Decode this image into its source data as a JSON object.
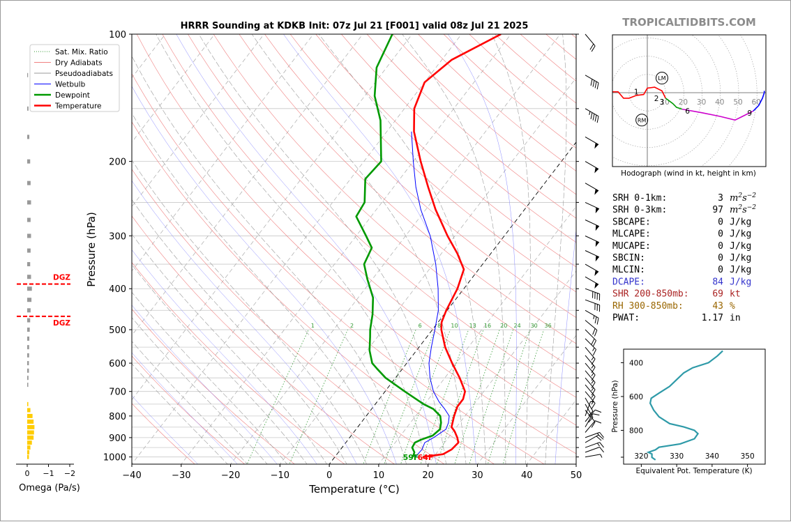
{
  "header": {
    "title": "HRRR Sounding at KDKB Init: 07z Jul 21 [F001] valid 08z Jul 21 2025",
    "brand": "TROPICALTIDBITS.COM"
  },
  "colors": {
    "temperature": "#ff0000",
    "dewpoint": "#009900",
    "wetbulb": "#0000ff",
    "dry_adiabat": "#f08080",
    "pseudoadiabat": "#999999",
    "mixing_ratio": "#339933",
    "isobar": "#c8c8c8",
    "omega_neg": "#999999",
    "omega_pos": "#ffcc00",
    "dgz": "#ff0000",
    "theta_e": "#2e9aa8",
    "dcape": "#3333cc",
    "shear": "#aa2222",
    "rh": "#996600"
  },
  "legend": {
    "items": [
      {
        "label": "Sat. Mix. Ratio",
        "style": "dotted",
        "color": "#339933"
      },
      {
        "label": "Dry Adiabats",
        "style": "solid-thin",
        "color": "#f08080"
      },
      {
        "label": "Pseudoadiabats",
        "style": "solid-thin",
        "color": "#999999"
      },
      {
        "label": "Wetbulb",
        "style": "solid-thin",
        "color": "#0000ff"
      },
      {
        "label": "Dewpoint",
        "style": "solid-thick",
        "color": "#009900"
      },
      {
        "label": "Temperature",
        "style": "solid-thick",
        "color": "#ff0000"
      }
    ]
  },
  "chart_data": [
    {
      "type": "line",
      "name": "skewt",
      "xlabel": "Temperature (°C)",
      "ylabel": "Pressure (hPa)",
      "xlim": [
        -40,
        50
      ],
      "ylim": [
        1040,
        100
      ],
      "y_log": true,
      "x_ticks": [
        "−40",
        "−30",
        "−20",
        "−10",
        "0",
        "10",
        "20",
        "30",
        "40",
        "50"
      ],
      "x_tick_values": [
        -40,
        -30,
        -20,
        -10,
        0,
        10,
        20,
        30,
        40,
        50
      ],
      "y_ticks": [
        100,
        200,
        300,
        400,
        500,
        600,
        700,
        800,
        900,
        1000
      ],
      "mix_ratio_labels": [
        "1",
        "2",
        "6",
        "8",
        "10",
        "13",
        "16",
        "20",
        "24",
        "30",
        "36"
      ],
      "mix_ratio_values": [
        1,
        2,
        6,
        8,
        10,
        13,
        16,
        20,
        24,
        30,
        36
      ],
      "surface_dewpoint_label": "59F",
      "surface_temp_label": "64F",
      "series": [
        {
          "name": "Temperature",
          "points": [
            [
              1000,
              17.8
            ],
            [
              985,
              21.5
            ],
            [
              960,
              22.5
            ],
            [
              925,
              22.8
            ],
            [
              900,
              21.8
            ],
            [
              870,
              20.3
            ],
            [
              850,
              19.0
            ],
            [
              800,
              17.8
            ],
            [
              760,
              17.0
            ],
            [
              730,
              17.0
            ],
            [
              700,
              16.2
            ],
            [
              650,
              13.0
            ],
            [
              600,
              9.2
            ],
            [
              550,
              5.3
            ],
            [
              500,
              1.8
            ],
            [
              480,
              0.7
            ],
            [
              450,
              -0.2
            ],
            [
              400,
              -1.3
            ],
            [
              360,
              -3.0
            ],
            [
              330,
              -6.8
            ],
            [
              300,
              -11.5
            ],
            [
              260,
              -18.0
            ],
            [
              230,
              -23.0
            ],
            [
              200,
              -28.5
            ],
            [
              170,
              -34.5
            ],
            [
              150,
              -38.0
            ],
            [
              130,
              -40.0
            ],
            [
              115,
              -38.0
            ],
            [
              100,
              -32.0
            ]
          ]
        },
        {
          "name": "Dewpoint",
          "points": [
            [
              1000,
              15.8
            ],
            [
              975,
              15.4
            ],
            [
              950,
              14.2
            ],
            [
              925,
              14.0
            ],
            [
              910,
              14.8
            ],
            [
              890,
              16.5
            ],
            [
              860,
              17.0
            ],
            [
              830,
              16.2
            ],
            [
              800,
              15.0
            ],
            [
              770,
              12.5
            ],
            [
              750,
              9.8
            ],
            [
              700,
              4.0
            ],
            [
              650,
              -2.0
            ],
            [
              620,
              -5.0
            ],
            [
              600,
              -7.0
            ],
            [
              560,
              -9.5
            ],
            [
              520,
              -11.5
            ],
            [
              500,
              -12.6
            ],
            [
              460,
              -14.5
            ],
            [
              420,
              -17.0
            ],
            [
              380,
              -21.0
            ],
            [
              350,
              -24.0
            ],
            [
              320,
              -25.0
            ],
            [
              300,
              -28.0
            ],
            [
              270,
              -33.0
            ],
            [
              250,
              -33.5
            ],
            [
              220,
              -37.0
            ],
            [
              200,
              -36.5
            ],
            [
              160,
              -43.0
            ],
            [
              140,
              -48.0
            ],
            [
              120,
              -52.0
            ],
            [
              100,
              -54.0
            ]
          ]
        },
        {
          "name": "Wetbulb",
          "points": [
            [
              1000,
              16.3
            ],
            [
              960,
              16.5
            ],
            [
              925,
              16.0
            ],
            [
              900,
              17.0
            ],
            [
              860,
              18.2
            ],
            [
              830,
              17.7
            ],
            [
              800,
              16.8
            ],
            [
              770,
              14.8
            ],
            [
              740,
              12.5
            ],
            [
              700,
              9.8
            ],
            [
              650,
              7.0
            ],
            [
              600,
              4.5
            ],
            [
              550,
              2.5
            ],
            [
              500,
              0.5
            ],
            [
              450,
              -1.8
            ],
            [
              400,
              -5.2
            ],
            [
              350,
              -9.5
            ],
            [
              300,
              -15.0
            ],
            [
              260,
              -21.0
            ],
            [
              230,
              -25.5
            ],
            [
              200,
              -30.0
            ],
            [
              170,
              -35.0
            ]
          ]
        }
      ]
    },
    {
      "type": "bar",
      "name": "omega",
      "xlabel": "Omega (Pa/s)",
      "xlim": [
        0.2,
        -2.2
      ],
      "x_ticks": [
        "0",
        "−1",
        "−2"
      ],
      "x_tick_values": [
        0,
        -1,
        -2
      ],
      "levels_hpa": [
        1000,
        975,
        950,
        925,
        900,
        875,
        850,
        825,
        800,
        775,
        750,
        725,
        700,
        675,
        650,
        625,
        600,
        575,
        550,
        525,
        500,
        475,
        450,
        425,
        400,
        375,
        350,
        325,
        300,
        275,
        250,
        225,
        200,
        175,
        150,
        125,
        100
      ],
      "values": [
        0.08,
        0.1,
        0.15,
        0.22,
        0.3,
        0.32,
        0.34,
        0.3,
        0.25,
        0.15,
        0.05,
        0,
        0,
        -0.05,
        -0.06,
        -0.08,
        -0.08,
        -0.09,
        -0.09,
        -0.1,
        -0.12,
        -0.14,
        -0.16,
        -0.2,
        -0.22,
        -0.18,
        -0.14,
        -0.16,
        -0.18,
        -0.16,
        -0.18,
        -0.16,
        -0.14,
        -0.1,
        -0.06,
        -0.04,
        0
      ],
      "dgz_label": "DGZ",
      "dgz_pressures": [
        390,
        465
      ]
    },
    {
      "type": "line",
      "name": "hodograph",
      "xlabel": "Hodograph (wind in kt, height in km)",
      "ring_labels": [
        "10",
        "20",
        "30",
        "40",
        "50",
        "60"
      ],
      "ring_values": [
        10,
        20,
        30,
        40,
        50,
        60
      ],
      "marker_labels": [
        "LM",
        "RM"
      ],
      "height_labels": [
        "1",
        "2",
        "3",
        "6",
        "9"
      ],
      "segments": [
        {
          "color": "#ff0000",
          "points": [
            [
              -19,
              0.5
            ],
            [
              -16,
              0.5
            ],
            [
              -13,
              -3
            ],
            [
              -10,
              -3
            ],
            [
              -6,
              -1.5
            ],
            [
              -2,
              -1
            ],
            [
              0,
              2.5
            ],
            [
              4,
              3
            ],
            [
              8,
              1
            ],
            [
              10,
              -3
            ]
          ]
        },
        {
          "color": "#009900",
          "points": [
            [
              10,
              -3
            ],
            [
              14,
              -6
            ],
            [
              16,
              -8
            ],
            [
              19,
              -9
            ]
          ]
        },
        {
          "color": "#cc00cc",
          "points": [
            [
              19,
              -9
            ],
            [
              30,
              -11
            ],
            [
              40,
              -13
            ],
            [
              48,
              -15
            ],
            [
              52,
              -13
            ],
            [
              58,
              -10
            ]
          ]
        },
        {
          "color": "#0000ff",
          "points": [
            [
              58,
              -10
            ],
            [
              61,
              -7
            ],
            [
              63,
              -3
            ],
            [
              64,
              0
            ],
            [
              64,
              1
            ]
          ]
        }
      ]
    },
    {
      "type": "line",
      "name": "theta_e",
      "xlabel": "Equivalent Pot. Temperature (K)",
      "ylabel": "Pressure (hPa)",
      "xlim": [
        315,
        355
      ],
      "ylim": [
        1000,
        320
      ],
      "x_ticks": [
        "320",
        "330",
        "340",
        "350"
      ],
      "x_tick_values": [
        320,
        330,
        340,
        350
      ],
      "y_ticks": [
        "400",
        "600",
        "800"
      ],
      "y_tick_values": [
        400,
        600,
        800
      ],
      "points": [
        [
          975,
          324
        ],
        [
          960,
          323
        ],
        [
          940,
          323
        ],
        [
          930,
          322
        ],
        [
          915,
          324
        ],
        [
          900,
          325
        ],
        [
          880,
          331
        ],
        [
          850,
          335
        ],
        [
          820,
          336
        ],
        [
          800,
          335
        ],
        [
          780,
          332
        ],
        [
          760,
          328
        ],
        [
          720,
          325
        ],
        [
          680,
          323.5
        ],
        [
          640,
          322.5
        ],
        [
          610,
          322.8
        ],
        [
          580,
          325
        ],
        [
          540,
          328
        ],
        [
          500,
          330
        ],
        [
          460,
          332
        ],
        [
          430,
          334.5
        ],
        [
          400,
          339
        ],
        [
          360,
          341.5
        ],
        [
          330,
          343
        ]
      ]
    }
  ],
  "stats": [
    {
      "label": "SRH 0-1km:",
      "value": "3",
      "unit": "m2s-2",
      "color": "#000000"
    },
    {
      "label": "SRH 0-3km:",
      "value": "97",
      "unit": "m2s-2",
      "color": "#000000"
    },
    {
      "label": "SBCAPE:",
      "value": "0",
      "unit": "J/kg",
      "color": "#000000"
    },
    {
      "label": "MLCAPE:",
      "value": "0",
      "unit": "J/kg",
      "color": "#000000"
    },
    {
      "label": "MUCAPE:",
      "value": "0",
      "unit": "J/kg",
      "color": "#000000"
    },
    {
      "label": "SBCIN:",
      "value": "0",
      "unit": "J/kg",
      "color": "#000000"
    },
    {
      "label": "MLCIN:",
      "value": "0",
      "unit": "J/kg",
      "color": "#000000"
    },
    {
      "label": "DCAPE:",
      "value": "84",
      "unit": "J/kg",
      "color": "#3333cc"
    },
    {
      "label": "SHR 200-850mb:",
      "value": "69",
      "unit": "kt",
      "color": "#aa2222"
    },
    {
      "label": "RH 300-850mb:",
      "value": "43",
      "unit": "%",
      "color": "#996600"
    },
    {
      "label": "PWAT:",
      "value": "1.17",
      "unit": "in",
      "color": "#000000"
    }
  ],
  "wind_barbs": {
    "levels_hpa": [
      100,
      125,
      150,
      175,
      200,
      225,
      250,
      275,
      300,
      325,
      350,
      375,
      400,
      425,
      450,
      475,
      500,
      525,
      550,
      575,
      600,
      625,
      650,
      675,
      700,
      725,
      750,
      775,
      800,
      825,
      850,
      875,
      900,
      925,
      950,
      975,
      1000
    ],
    "speed_kt": [
      20,
      40,
      45,
      50,
      50,
      50,
      50,
      50,
      50,
      50,
      50,
      50,
      40,
      30,
      25,
      20,
      20,
      15,
      15,
      15,
      15,
      15,
      15,
      15,
      15,
      10,
      10,
      10,
      5,
      10,
      10,
      10,
      15,
      20,
      15,
      10,
      5
    ],
    "dir_deg": [
      320,
      300,
      300,
      300,
      300,
      300,
      295,
      295,
      295,
      295,
      300,
      300,
      290,
      290,
      300,
      310,
      315,
      315,
      320,
      320,
      320,
      320,
      320,
      320,
      320,
      330,
      330,
      320,
      200,
      220,
      210,
      220,
      250,
      240,
      250,
      250,
      260
    ]
  }
}
